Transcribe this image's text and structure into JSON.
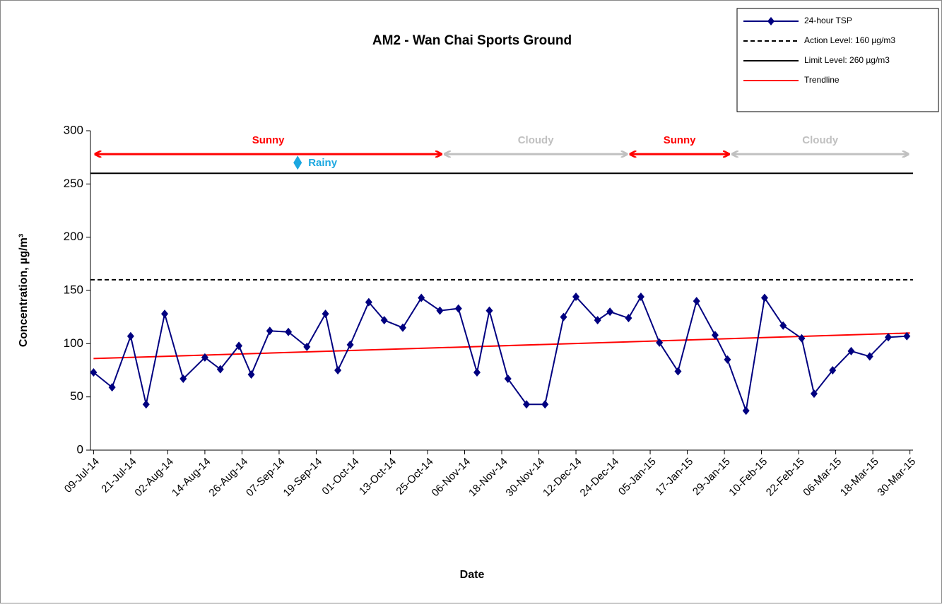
{
  "chart_data": {
    "type": "line",
    "title": "AM2 - Wan Chai Sports Ground",
    "x_label": "Date",
    "y_label": "Concentration, µg/m³",
    "xlim": [
      "2014-07-08",
      "2015-03-31"
    ],
    "ylim": [
      0,
      300
    ],
    "yticks": [
      0,
      50,
      100,
      150,
      200,
      250,
      300
    ],
    "xticks": [
      {
        "value": "2014-07-09",
        "label": "09-Jul-14"
      },
      {
        "value": "2014-07-21",
        "label": "21-Jul-14"
      },
      {
        "value": "2014-08-02",
        "label": "02-Aug-14"
      },
      {
        "value": "2014-08-14",
        "label": "14-Aug-14"
      },
      {
        "value": "2014-08-26",
        "label": "26-Aug-14"
      },
      {
        "value": "2014-09-07",
        "label": "07-Sep-14"
      },
      {
        "value": "2014-09-19",
        "label": "19-Sep-14"
      },
      {
        "value": "2014-10-01",
        "label": "01-Oct-14"
      },
      {
        "value": "2014-10-13",
        "label": "13-Oct-14"
      },
      {
        "value": "2014-10-25",
        "label": "25-Oct-14"
      },
      {
        "value": "2014-11-06",
        "label": "06-Nov-14"
      },
      {
        "value": "2014-11-18",
        "label": "18-Nov-14"
      },
      {
        "value": "2014-11-30",
        "label": "30-Nov-14"
      },
      {
        "value": "2014-12-12",
        "label": "12-Dec-14"
      },
      {
        "value": "2014-12-24",
        "label": "24-Dec-14"
      },
      {
        "value": "2015-01-05",
        "label": "05-Jan-15"
      },
      {
        "value": "2015-01-17",
        "label": "17-Jan-15"
      },
      {
        "value": "2015-01-29",
        "label": "29-Jan-15"
      },
      {
        "value": "2015-02-10",
        "label": "10-Feb-15"
      },
      {
        "value": "2015-02-22",
        "label": "22-Feb-15"
      },
      {
        "value": "2015-03-06",
        "label": "06-Mar-15"
      },
      {
        "value": "2015-03-18",
        "label": "18-Mar-15"
      },
      {
        "value": "2015-03-30",
        "label": "30-Mar-15"
      }
    ],
    "series": [
      {
        "name": "24-hour TSP",
        "color": "#000080",
        "marker": "diamond",
        "x": [
          "2014-07-09",
          "2014-07-15",
          "2014-07-21",
          "2014-07-26",
          "2014-08-01",
          "2014-08-07",
          "2014-08-14",
          "2014-08-19",
          "2014-08-25",
          "2014-08-29",
          "2014-09-04",
          "2014-09-10",
          "2014-09-16",
          "2014-09-22",
          "2014-09-26",
          "2014-09-30",
          "2014-10-06",
          "2014-10-11",
          "2014-10-17",
          "2014-10-23",
          "2014-10-29",
          "2014-11-04",
          "2014-11-10",
          "2014-11-14",
          "2014-11-20",
          "2014-11-26",
          "2014-12-02",
          "2014-12-08",
          "2014-12-12",
          "2014-12-19",
          "2014-12-23",
          "2014-12-29",
          "2015-01-02",
          "2015-01-08",
          "2015-01-14",
          "2015-01-20",
          "2015-01-26",
          "2015-01-30",
          "2015-02-05",
          "2015-02-11",
          "2015-02-17",
          "2015-02-23",
          "2015-02-27",
          "2015-03-05",
          "2015-03-11",
          "2015-03-17",
          "2015-03-23",
          "2015-03-29"
        ],
        "values": [
          73,
          59,
          107,
          43,
          128,
          67,
          87,
          76,
          98,
          71,
          112,
          111,
          97,
          128,
          75,
          99,
          139,
          122,
          115,
          143,
          131,
          133,
          73,
          131,
          67,
          43,
          43,
          125,
          144,
          122,
          130,
          124,
          144,
          101,
          74,
          140,
          108,
          85,
          37,
          143,
          117,
          105,
          53,
          75,
          93,
          88,
          106,
          107
        ]
      },
      {
        "name": "Action Level: 160 µg/m3",
        "color": "#000000",
        "dash": true,
        "x": [
          "2014-07-08",
          "2015-03-31"
        ],
        "values": [
          160,
          160
        ]
      },
      {
        "name": "Limit Level: 260 µg/m3",
        "color": "#000000",
        "x": [
          "2014-07-08",
          "2015-03-31"
        ],
        "values": [
          260,
          260
        ]
      },
      {
        "name": "Trendline",
        "color": "#ff0000",
        "x": [
          "2014-07-09",
          "2015-03-30"
        ],
        "values": [
          86,
          110
        ]
      }
    ],
    "annotations": [
      {
        "text": "Sunny",
        "start": "2014-07-09",
        "end": "2014-10-30",
        "y": 278,
        "color": "#ff0000"
      },
      {
        "text": "Cloudy",
        "start": "2014-10-30",
        "end": "2014-12-29",
        "y": 278,
        "color": "#c0c0c0"
      },
      {
        "text": "Sunny",
        "start": "2014-12-29",
        "end": "2015-01-31",
        "y": 278,
        "color": "#ff0000"
      },
      {
        "text": "Cloudy",
        "start": "2015-01-31",
        "end": "2015-03-30",
        "y": 278,
        "color": "#c0c0c0"
      }
    ],
    "markers": [
      {
        "text": "Rainy",
        "x": "2014-09-13",
        "y": 270,
        "color": "#1aa7e0"
      }
    ],
    "legend": "top-right"
  }
}
